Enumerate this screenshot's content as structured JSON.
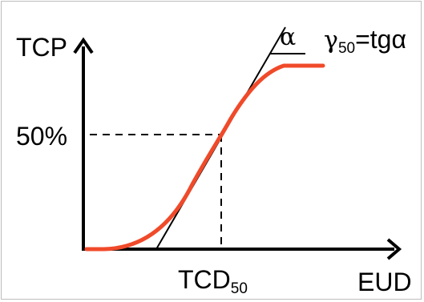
{
  "diagram": {
    "y_axis_label": "TCP",
    "x_axis_label": "EUD",
    "level_label": "50%",
    "dose_label_main": "TCD",
    "dose_label_sub": "50",
    "angle_label": "α",
    "formula": {
      "gamma": "γ",
      "gamma_sub": "50",
      "rest": "=tgα"
    },
    "colors": {
      "curve": "#f04a2a",
      "axes": "#000000",
      "frame": "#bdbdbd"
    }
  }
}
